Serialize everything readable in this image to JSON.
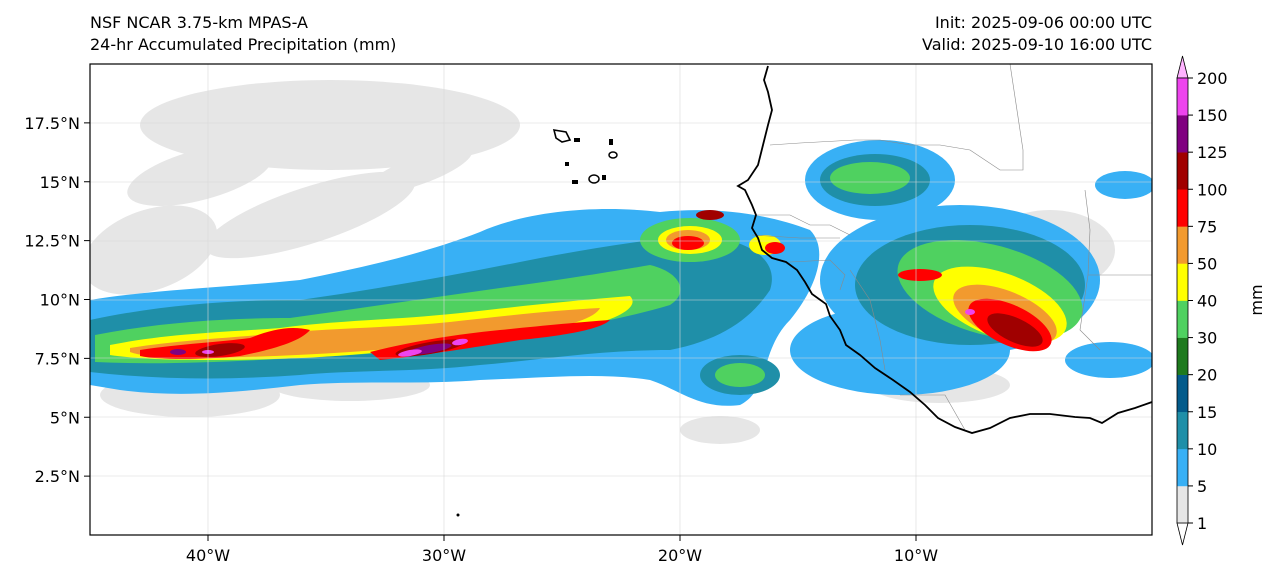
{
  "header": {
    "model": "NSF NCAR 3.75-km MPAS-A",
    "field": "24-hr Accumulated Precipitation (mm)",
    "init": "Init: 2025-09-06 00:00 UTC",
    "valid": "Valid: 2025-09-10 16:00 UTC"
  },
  "map": {
    "lon_range": [
      -45,
      0
    ],
    "lat_range": [
      0,
      20
    ],
    "lon_ticks": [
      "40°W",
      "30°W",
      "20°W",
      "10°W"
    ],
    "lon_tick_values": [
      -40,
      -30,
      -20,
      -10
    ],
    "lat_ticks": [
      "2.5°N",
      "5°N",
      "7.5°N",
      "10°N",
      "12.5°N",
      "15°N",
      "17.5°N"
    ],
    "lat_tick_values": [
      2.5,
      5,
      7.5,
      10,
      12.5,
      15,
      17.5
    ],
    "grid": true
  },
  "colorbar": {
    "label": "mm",
    "levels": [
      "1",
      "5",
      "10",
      "15",
      "20",
      "30",
      "40",
      "50",
      "75",
      "100",
      "125",
      "150",
      "200"
    ],
    "colors": [
      "#e6e6e6",
      "#38b0f5",
      "#1f8fa8",
      "#035b8b",
      "#1e7a1e",
      "#4fd160",
      "#ffff00",
      "#f29a2e",
      "#ff0000",
      "#a00000",
      "#800080",
      "#ee44ee"
    ],
    "extend_colors": {
      "under": "#ffffff",
      "over": "#ffb3ff"
    }
  },
  "precip_palette": {
    "trace": "#e6e6e6",
    "light": "#38b0f5",
    "teal": "#1f8fa8",
    "dark": "#035b8b",
    "green": "#1e7a1e",
    "lightgreen": "#4fd160",
    "yellow": "#ffff00",
    "orange": "#f29a2e",
    "red": "#ff0000",
    "darkred": "#a00000",
    "purple": "#800080",
    "magenta": "#ee44ee"
  }
}
